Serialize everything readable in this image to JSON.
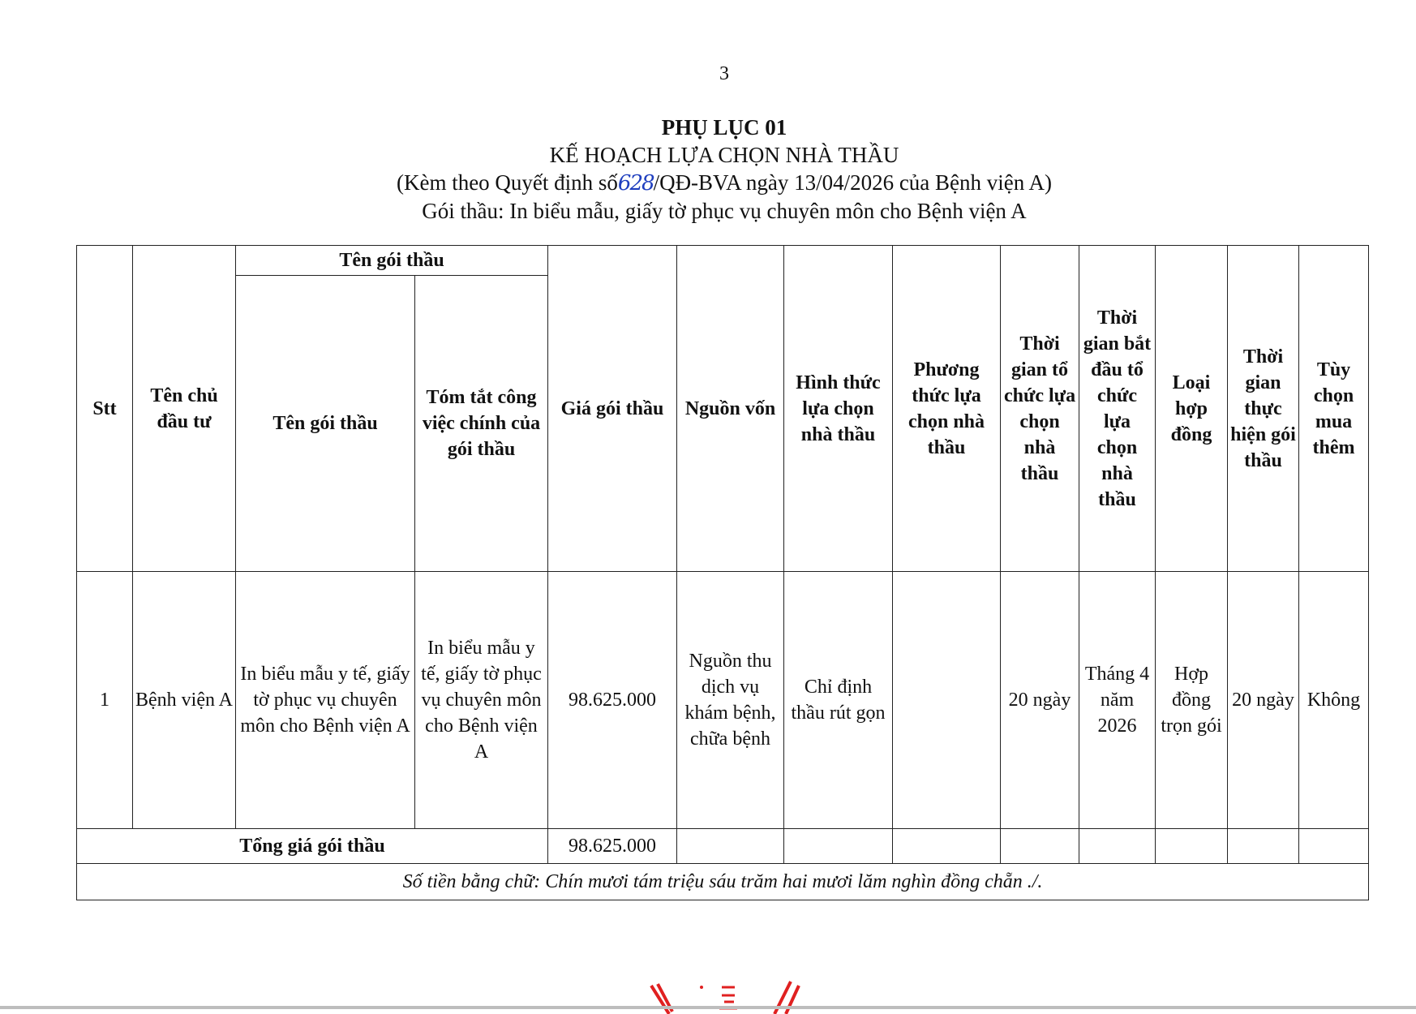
{
  "page_number": "3",
  "header": {
    "title": "PHỤ LỤC  01",
    "subtitle": "KẾ HOẠCH LỰA CHỌN NHÀ THẦU",
    "decision_prefix": "(Kèm theo Quyết định số",
    "decision_number_handwritten": "628",
    "decision_suffix": "/QĐ-BVA ngày 13/04/2026 của Bệnh viện A)",
    "package": "Gói thầu: In biểu mẫu, giấy tờ phục vụ chuyên môn cho Bệnh viện A"
  },
  "table": {
    "headers": {
      "stt": "Stt",
      "owner": "Tên chủ đầu tư",
      "package_group": "Tên gói thầu",
      "package_name": "Tên gói thầu",
      "summary": "Tóm tắt công việc chính của gói thầu",
      "price": "Giá gói thầu",
      "fund": "Nguồn vốn",
      "form": "Hình thức lựa chọn nhà thầu",
      "method": "Phương thức lựa chọn nhà thầu",
      "org_time": "Thời gian tổ chức lựa chọn nhà thầu",
      "start_time": "Thời gian bắt đầu tổ chức lựa chọn nhà thầu",
      "contract_type": "Loại hợp đồng",
      "exec_time": "Thời gian thực hiện gói thầu",
      "option": "Tùy chọn mua thêm"
    },
    "rows": [
      {
        "stt": "1",
        "owner": "Bệnh viện A",
        "package_name": "In biểu mẫu y tế, giấy tờ phục vụ chuyên môn cho Bệnh viện A",
        "summary": "In biểu mẫu y tế, giấy tờ phục vụ chuyên môn cho Bệnh viện A",
        "price": "98.625.000",
        "fund": "Nguồn thu dịch vụ khám bệnh, chữa bệnh",
        "form": "Chỉ định thầu rút gọn",
        "method": "",
        "org_time": "20 ngày",
        "start_time": "Tháng 4 năm 2026",
        "contract_type": "Hợp đồng trọn gói",
        "exec_time": "20 ngày",
        "option": "Không"
      }
    ],
    "total_label": "Tổng giá gói thầu",
    "total_value": "98.625.000",
    "amount_in_words": "Số tiền bằng chữ:  Chín mươi tám triệu sáu trăm hai mươi lăm nghìn đồng chẵn ./."
  },
  "colors": {
    "text": "#111111",
    "handwriting": "#1f3fbf",
    "seal": "#e02020"
  }
}
